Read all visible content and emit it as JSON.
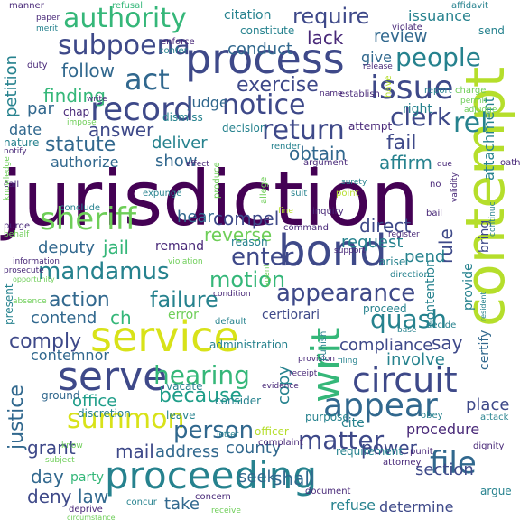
{
  "palette": {
    "background": "#ffffff",
    "c1": "#440154",
    "c2": "#482878",
    "c3": "#3e4989",
    "c4": "#31688e",
    "c5": "#26828e",
    "c6": "#1f9e89",
    "c7": "#35b779",
    "c8": "#6ece58",
    "c9": "#b5de2b",
    "c10": "#d8e219",
    "c11": "#fde725"
  },
  "words": [
    {
      "id": "jurisdiction",
      "text": "jurisdiction",
      "color": "#440154"
    },
    {
      "id": "contempt",
      "text": "contempt",
      "color": "#b5de2b"
    },
    {
      "id": "proceeding",
      "text": "proceeding",
      "color": "#26828e"
    },
    {
      "id": "process",
      "text": "process",
      "color": "#3e4989"
    },
    {
      "id": "service",
      "text": "service",
      "color": "#d8e219"
    },
    {
      "id": "bond",
      "text": "bond",
      "color": "#3e4989"
    },
    {
      "id": "serve",
      "text": "serve",
      "color": "#3e4989"
    },
    {
      "id": "writ",
      "text": "writ",
      "color": "#35b779"
    },
    {
      "id": "record",
      "text": "record",
      "color": "#3e4989"
    },
    {
      "id": "issue",
      "text": "issue",
      "color": "#3e4989"
    },
    {
      "id": "sheriff",
      "text": "sheriff",
      "color": "#6ece58"
    },
    {
      "id": "circuit",
      "text": "circuit",
      "color": "#3e4989"
    },
    {
      "id": "appear",
      "text": "appear",
      "color": "#31688e"
    },
    {
      "id": "authority",
      "text": "authority",
      "color": "#35b779"
    },
    {
      "id": "subpoena",
      "text": "subpoena",
      "color": "#3e4989"
    },
    {
      "id": "summon",
      "text": "summon",
      "color": "#d8e219"
    },
    {
      "id": "mandamus",
      "text": "mandamus",
      "color": "#26828e"
    },
    {
      "id": "appearance",
      "text": "appearance",
      "color": "#3e4989"
    },
    {
      "id": "people",
      "text": "people",
      "color": "#26828e"
    },
    {
      "id": "notice",
      "text": "notice",
      "color": "#3e4989"
    },
    {
      "id": "return",
      "text": "return",
      "color": "#3e4989"
    },
    {
      "id": "act",
      "text": "act",
      "color": "#31688e"
    },
    {
      "id": "require",
      "text": "require",
      "color": "#3e4989"
    },
    {
      "id": "rel",
      "text": "rel",
      "color": "#26828e"
    },
    {
      "id": "clerk",
      "text": "clerk",
      "color": "#3e4989"
    },
    {
      "id": "file",
      "text": "file",
      "color": "#31688e"
    },
    {
      "id": "matter",
      "text": "matter",
      "color": "#3e4989"
    },
    {
      "id": "hearing",
      "text": "hearing",
      "color": "#35b779"
    },
    {
      "id": "person",
      "text": "person",
      "color": "#31688e"
    },
    {
      "id": "enter",
      "text": "enter",
      "color": "#3e4989"
    },
    {
      "id": "quash",
      "text": "quash",
      "color": "#26828e"
    },
    {
      "id": "motion",
      "text": "motion",
      "color": "#35b779"
    },
    {
      "id": "failure",
      "text": "failure",
      "color": "#26828e"
    },
    {
      "id": "because",
      "text": "because",
      "color": "#1f9e89"
    },
    {
      "id": "action",
      "text": "action",
      "color": "#31688e"
    },
    {
      "id": "comply",
      "text": "comply",
      "color": "#3e4989"
    },
    {
      "id": "answer",
      "text": "answer",
      "color": "#3e4989"
    },
    {
      "id": "exercise",
      "text": "exercise",
      "color": "#3e4989"
    },
    {
      "id": "conduct",
      "text": "conduct",
      "color": "#31688e"
    },
    {
      "id": "review",
      "text": "review",
      "color": "#31688e"
    },
    {
      "id": "lack",
      "text": "lack",
      "color": "#482878"
    },
    {
      "id": "follow",
      "text": "follow",
      "color": "#31688e"
    },
    {
      "id": "finding",
      "text": "finding",
      "color": "#35b779"
    },
    {
      "id": "statute",
      "text": "statute",
      "color": "#31688e"
    },
    {
      "id": "deliver",
      "text": "deliver",
      "color": "#26828e"
    },
    {
      "id": "fail",
      "text": "fail",
      "color": "#3e4989"
    },
    {
      "id": "obtain",
      "text": "obtain",
      "color": "#31688e"
    },
    {
      "id": "affirm",
      "text": "affirm",
      "color": "#26828e"
    },
    {
      "id": "show",
      "text": "show",
      "color": "#31688e"
    },
    {
      "id": "compel",
      "text": "compel",
      "color": "#3e4989"
    },
    {
      "id": "reverse",
      "text": "reverse",
      "color": "#6ece58"
    },
    {
      "id": "hear",
      "text": "hear",
      "color": "#31688e"
    },
    {
      "id": "direct",
      "text": "direct",
      "color": "#3e4989"
    },
    {
      "id": "rule",
      "text": "rule",
      "color": "#3e4989"
    },
    {
      "id": "request",
      "text": "request",
      "color": "#26828e"
    },
    {
      "id": "pend",
      "text": "pend",
      "color": "#26828e"
    },
    {
      "id": "jail",
      "text": "jail",
      "color": "#35b779"
    },
    {
      "id": "deputy",
      "text": "deputy",
      "color": "#31688e"
    },
    {
      "id": "remand",
      "text": "remand",
      "color": "#482878"
    },
    {
      "id": "justice",
      "text": "justice",
      "color": "#31688e"
    },
    {
      "id": "contemnor",
      "text": "contemnor",
      "color": "#31688e"
    },
    {
      "id": "contend",
      "text": "contend",
      "color": "#31688e"
    },
    {
      "id": "ch",
      "text": "ch",
      "color": "#35b779"
    },
    {
      "id": "error",
      "text": "error",
      "color": "#6ece58"
    },
    {
      "id": "certiorari",
      "text": "certiorari",
      "color": "#3e4989"
    },
    {
      "id": "compliance",
      "text": "compliance",
      "color": "#3e4989"
    },
    {
      "id": "say",
      "text": "say",
      "color": "#3e4989"
    },
    {
      "id": "involve",
      "text": "involve",
      "color": "#26828e"
    },
    {
      "id": "copy",
      "text": "copy",
      "color": "#26828e"
    },
    {
      "id": "office",
      "text": "office",
      "color": "#1f9e89"
    },
    {
      "id": "power",
      "text": "power",
      "color": "#3e4989"
    },
    {
      "id": "county",
      "text": "county",
      "color": "#31688e"
    },
    {
      "id": "procedure",
      "text": "procedure",
      "color": "#482878"
    },
    {
      "id": "mail",
      "text": "mail",
      "color": "#3e4989"
    },
    {
      "id": "address",
      "text": "address",
      "color": "#31688e"
    },
    {
      "id": "grant",
      "text": "grant",
      "color": "#3e4989"
    },
    {
      "id": "day",
      "text": "day",
      "color": "#31688e"
    },
    {
      "id": "party",
      "text": "party",
      "color": "#35b779"
    },
    {
      "id": "deny",
      "text": "deny",
      "color": "#3e4989"
    },
    {
      "id": "law",
      "text": "law",
      "color": "#31688e"
    },
    {
      "id": "seek",
      "text": "seek",
      "color": "#31688e"
    },
    {
      "id": "shall",
      "text": "shall",
      "color": "#31688e"
    },
    {
      "id": "take",
      "text": "take",
      "color": "#31688e"
    },
    {
      "id": "refuse",
      "text": "refuse",
      "color": "#26828e"
    },
    {
      "id": "determine",
      "text": "determine",
      "color": "#3e4989"
    },
    {
      "id": "section",
      "text": "section",
      "color": "#3e4989"
    },
    {
      "id": "certify",
      "text": "certify",
      "color": "#31688e"
    },
    {
      "id": "provide",
      "text": "provide",
      "color": "#26828e"
    },
    {
      "id": "bring",
      "text": "bring",
      "color": "#3e4989"
    },
    {
      "id": "contention",
      "text": "contention",
      "color": "#26828e"
    },
    {
      "id": "attachment",
      "text": "attachment",
      "color": "#26828e"
    },
    {
      "id": "petition",
      "text": "petition",
      "color": "#26828e"
    },
    {
      "id": "authorize",
      "text": "authorize",
      "color": "#31688e"
    },
    {
      "id": "date",
      "text": "date",
      "color": "#31688e"
    },
    {
      "id": "par",
      "text": "par",
      "color": "#31688e"
    },
    {
      "id": "chap",
      "text": "chap",
      "color": "#482878"
    },
    {
      "id": "judge",
      "text": "judge",
      "color": "#31688e"
    },
    {
      "id": "citation",
      "text": "citation",
      "color": "#26828e"
    },
    {
      "id": "issuance",
      "text": "issuance",
      "color": "#26828e"
    },
    {
      "id": "give",
      "text": "give",
      "color": "#31688e"
    },
    {
      "id": "right",
      "text": "right",
      "color": "#26828e"
    },
    {
      "id": "constitute",
      "text": "constitute",
      "color": "#26828e"
    },
    {
      "id": "enforce",
      "text": "enforce",
      "color": "#482878"
    },
    {
      "id": "confer",
      "text": "confer",
      "color": "#26828e"
    },
    {
      "id": "dismiss",
      "text": "dismiss",
      "color": "#26828e"
    },
    {
      "id": "decision",
      "text": "decision",
      "color": "#26828e"
    },
    {
      "id": "attempt",
      "text": "attempt",
      "color": "#482878"
    },
    {
      "id": "render",
      "text": "render",
      "color": "#26828e"
    },
    {
      "id": "argument",
      "text": "argument",
      "color": "#482878"
    },
    {
      "id": "establish",
      "text": "establish",
      "color": "#482878"
    },
    {
      "id": "name",
      "text": "name",
      "color": "#482878"
    },
    {
      "id": "release",
      "text": "release",
      "color": "#482878"
    },
    {
      "id": "report",
      "text": "report",
      "color": "#26828e"
    },
    {
      "id": "charge",
      "text": "charge",
      "color": "#6ece58"
    },
    {
      "id": "permit",
      "text": "permit",
      "color": "#6ece58"
    },
    {
      "id": "adjudge",
      "text": "adjudge",
      "color": "#6ece58"
    },
    {
      "id": "send",
      "text": "send",
      "color": "#26828e"
    },
    {
      "id": "affidavit",
      "text": "affidavit",
      "color": "#26828e"
    },
    {
      "id": "violate",
      "text": "violate",
      "color": "#482878"
    },
    {
      "id": "have",
      "text": "have",
      "color": "#b5de2b"
    },
    {
      "id": "manner",
      "text": "manner",
      "color": "#482878"
    },
    {
      "id": "refusal",
      "text": "refusal",
      "color": "#35b779"
    },
    {
      "id": "paper",
      "text": "paper",
      "color": "#482878"
    },
    {
      "id": "merit",
      "text": "merit",
      "color": "#26828e"
    },
    {
      "id": "duty",
      "text": "duty",
      "color": "#482878"
    },
    {
      "id": "write",
      "text": "write",
      "color": "#482878"
    },
    {
      "id": "impose",
      "text": "impose",
      "color": "#6ece58"
    },
    {
      "id": "nature",
      "text": "nature",
      "color": "#26828e"
    },
    {
      "id": "notify",
      "text": "notify",
      "color": "#482878"
    },
    {
      "id": "effect",
      "text": "effect",
      "color": "#482878"
    },
    {
      "id": "produce",
      "text": "produce",
      "color": "#6ece58"
    },
    {
      "id": "expunge",
      "text": "expunge",
      "color": "#26828e"
    },
    {
      "id": "knowledge",
      "text": "knowledge",
      "color": "#6ece58"
    },
    {
      "id": "call",
      "text": "call",
      "color": "#482878"
    },
    {
      "id": "conclude",
      "text": "conclude",
      "color": "#26828e"
    },
    {
      "id": "purge",
      "text": "purge",
      "color": "#482878"
    },
    {
      "id": "behalf",
      "text": "behalf",
      "color": "#6ece58"
    },
    {
      "id": "allege",
      "text": "allege",
      "color": "#6ece58"
    },
    {
      "id": "suit",
      "text": "suit",
      "color": "#26828e"
    },
    {
      "id": "point",
      "text": "point",
      "color": "#b5de2b"
    },
    {
      "id": "surety",
      "text": "surety",
      "color": "#26828e"
    },
    {
      "id": "no",
      "text": "no",
      "color": "#482878"
    },
    {
      "id": "validity",
      "text": "validity",
      "color": "#482878"
    },
    {
      "id": "bail",
      "text": "bail",
      "color": "#482878"
    },
    {
      "id": "oath",
      "text": "oath",
      "color": "#482878"
    },
    {
      "id": "due",
      "text": "due",
      "color": "#482878"
    },
    {
      "id": "inquiry",
      "text": "inquiry",
      "color": "#482878"
    },
    {
      "id": "fine",
      "text": "fine",
      "color": "#b5de2b"
    },
    {
      "id": "command",
      "text": "command",
      "color": "#482878"
    },
    {
      "id": "register",
      "text": "register",
      "color": "#482878"
    },
    {
      "id": "continue",
      "text": "continuc",
      "color": "#26828e"
    },
    {
      "id": "reason",
      "text": "reason",
      "color": "#26828e"
    },
    {
      "id": "support",
      "text": "support",
      "color": "#482878"
    },
    {
      "id": "arise",
      "text": "arise",
      "color": "#26828e"
    },
    {
      "id": "direction",
      "text": "direction",
      "color": "#26828e"
    },
    {
      "id": "information",
      "text": "information",
      "color": "#482878"
    },
    {
      "id": "violation",
      "text": "violation",
      "color": "#6ece58"
    },
    {
      "id": "opportunity",
      "text": "opportunity",
      "color": "#6ece58"
    },
    {
      "id": "prosecute",
      "text": "prosecute",
      "color": "#482878"
    },
    {
      "id": "agent",
      "text": "agent",
      "color": "#6ece58"
    },
    {
      "id": "condition",
      "text": "condition",
      "color": "#482878"
    },
    {
      "id": "proceed",
      "text": "proceed",
      "color": "#26828e"
    },
    {
      "id": "present",
      "text": "present",
      "color": "#26828e"
    },
    {
      "id": "absence",
      "text": "absence",
      "color": "#6ece58"
    },
    {
      "id": "default",
      "text": "default",
      "color": "#26828e"
    },
    {
      "id": "decide",
      "text": "decide",
      "color": "#26828e"
    },
    {
      "id": "base",
      "text": "base",
      "color": "#26828e"
    },
    {
      "id": "resident",
      "text": "resident",
      "color": "#26828e"
    },
    {
      "id": "administration",
      "text": "administration",
      "color": "#26828e"
    },
    {
      "id": "provision",
      "text": "provision",
      "color": "#482878"
    },
    {
      "id": "punish",
      "text": "punish",
      "color": "#26828e"
    },
    {
      "id": "filing",
      "text": "filing",
      "color": "#26828e"
    },
    {
      "id": "receipt",
      "text": "receipt",
      "color": "#482878"
    },
    {
      "id": "ground",
      "text": "ground",
      "color": "#31688e"
    },
    {
      "id": "evidence",
      "text": "evidence",
      "color": "#482878"
    },
    {
      "id": "discretion",
      "text": "discretion",
      "color": "#26828e"
    },
    {
      "id": "leave",
      "text": "leave",
      "color": "#26828e"
    },
    {
      "id": "purpose",
      "text": "purpose",
      "color": "#26828e"
    },
    {
      "id": "obey",
      "text": "obey",
      "color": "#26828e"
    },
    {
      "id": "attack",
      "text": "attack",
      "color": "#26828e"
    },
    {
      "id": "know",
      "text": "know",
      "color": "#6ece58"
    },
    {
      "id": "officer",
      "text": "officer",
      "color": "#b5de2b"
    },
    {
      "id": "letter",
      "text": "letter",
      "color": "#26828e"
    },
    {
      "id": "complaint",
      "text": "complaint",
      "color": "#482878"
    },
    {
      "id": "requirement",
      "text": "requirement",
      "color": "#26828e"
    },
    {
      "id": "attorney",
      "text": "attorney",
      "color": "#482878"
    },
    {
      "id": "punit",
      "text": "punit",
      "color": "#482878"
    },
    {
      "id": "dignity",
      "text": "dignity",
      "color": "#482878"
    },
    {
      "id": "subject",
      "text": "subject",
      "color": "#6ece58"
    },
    {
      "id": "deprive",
      "text": "deprive",
      "color": "#482878"
    },
    {
      "id": "concur",
      "text": "concur",
      "color": "#26828e"
    },
    {
      "id": "concern",
      "text": "concern",
      "color": "#482878"
    },
    {
      "id": "document",
      "text": "document",
      "color": "#482878"
    },
    {
      "id": "argue",
      "text": "argue",
      "color": "#26828e"
    },
    {
      "id": "circumstance",
      "text": "circumstance",
      "color": "#6ece58"
    },
    {
      "id": "receive",
      "text": "receive",
      "color": "#6ece58"
    },
    {
      "id": "consider",
      "text": "consider",
      "color": "#26828e"
    },
    {
      "id": "cite",
      "text": "cite",
      "color": "#26828e"
    },
    {
      "id": "vacate",
      "text": "vacate",
      "color": "#26828e"
    },
    {
      "id": "place",
      "text": "place",
      "color": "#3e4989"
    }
  ]
}
